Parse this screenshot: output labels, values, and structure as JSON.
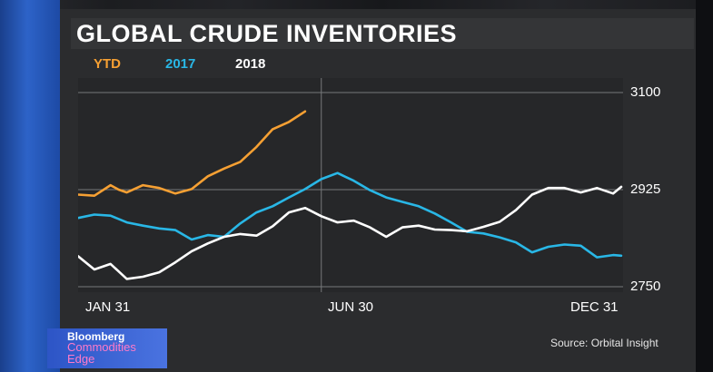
{
  "chart_data": {
    "type": "line",
    "title": "GLOBAL CRUDE INVENTORIES",
    "xlabel": "",
    "ylabel": "",
    "x_range": [
      0,
      335
    ],
    "ylim": [
      2750,
      3100
    ],
    "x_ticks": [
      {
        "label": "JAN 31",
        "x": 0
      },
      {
        "label": "JUN 30",
        "x": 150
      },
      {
        "label": "DEC 31",
        "x": 334
      }
    ],
    "y_ticks": [
      {
        "label": "3100",
        "value": 3100
      },
      {
        "label": "2925",
        "value": 2925
      },
      {
        "label": "2750",
        "value": 2750
      }
    ],
    "grid": {
      "horizontal": [
        3100,
        2925,
        2750
      ],
      "vertical": [
        150
      ]
    },
    "legend_position": "top-left",
    "series": [
      {
        "name": "YTD",
        "color": "#f6a033",
        "x": [
          0,
          10,
          20,
          25,
          30,
          40,
          50,
          60,
          70,
          80,
          90,
          100,
          110,
          120,
          130,
          140
        ],
        "y": [
          2916,
          2914,
          2933,
          2925,
          2920,
          2933,
          2928,
          2918,
          2926,
          2949,
          2963,
          2975,
          3002,
          3034,
          3047,
          3066
        ]
      },
      {
        "name": "2017",
        "color": "#29b7e6",
        "x": [
          0,
          10,
          20,
          30,
          40,
          50,
          60,
          70,
          80,
          90,
          100,
          110,
          120,
          130,
          140,
          150,
          160,
          170,
          180,
          190,
          200,
          210,
          220,
          230,
          240,
          250,
          260,
          270,
          280,
          290,
          300,
          310,
          320,
          330,
          335
        ],
        "y": [
          2874,
          2880,
          2878,
          2866,
          2860,
          2855,
          2852,
          2835,
          2843,
          2840,
          2864,
          2884,
          2895,
          2911,
          2926,
          2944,
          2955,
          2941,
          2924,
          2911,
          2903,
          2895,
          2882,
          2866,
          2849,
          2846,
          2839,
          2830,
          2812,
          2822,
          2826,
          2824,
          2803,
          2807,
          2806
        ]
      },
      {
        "name": "2018",
        "color": "#ffffff",
        "x": [
          0,
          10,
          20,
          30,
          40,
          50,
          60,
          70,
          80,
          90,
          100,
          110,
          120,
          130,
          140,
          150,
          160,
          170,
          180,
          190,
          200,
          210,
          220,
          230,
          240,
          250,
          260,
          270,
          280,
          290,
          300,
          310,
          320,
          330,
          335
        ],
        "y": [
          2805,
          2781,
          2791,
          2764,
          2768,
          2776,
          2794,
          2814,
          2828,
          2840,
          2845,
          2842,
          2859,
          2884,
          2892,
          2877,
          2866,
          2869,
          2857,
          2840,
          2857,
          2860,
          2853,
          2852,
          2850,
          2858,
          2867,
          2888,
          2916,
          2928,
          2928,
          2920,
          2928,
          2918,
          2930
        ]
      }
    ]
  },
  "branding": {
    "logo_line1": "Bloomberg",
    "logo_line2": "Commodities Edge"
  },
  "source_text": "Source: Orbital Insight"
}
